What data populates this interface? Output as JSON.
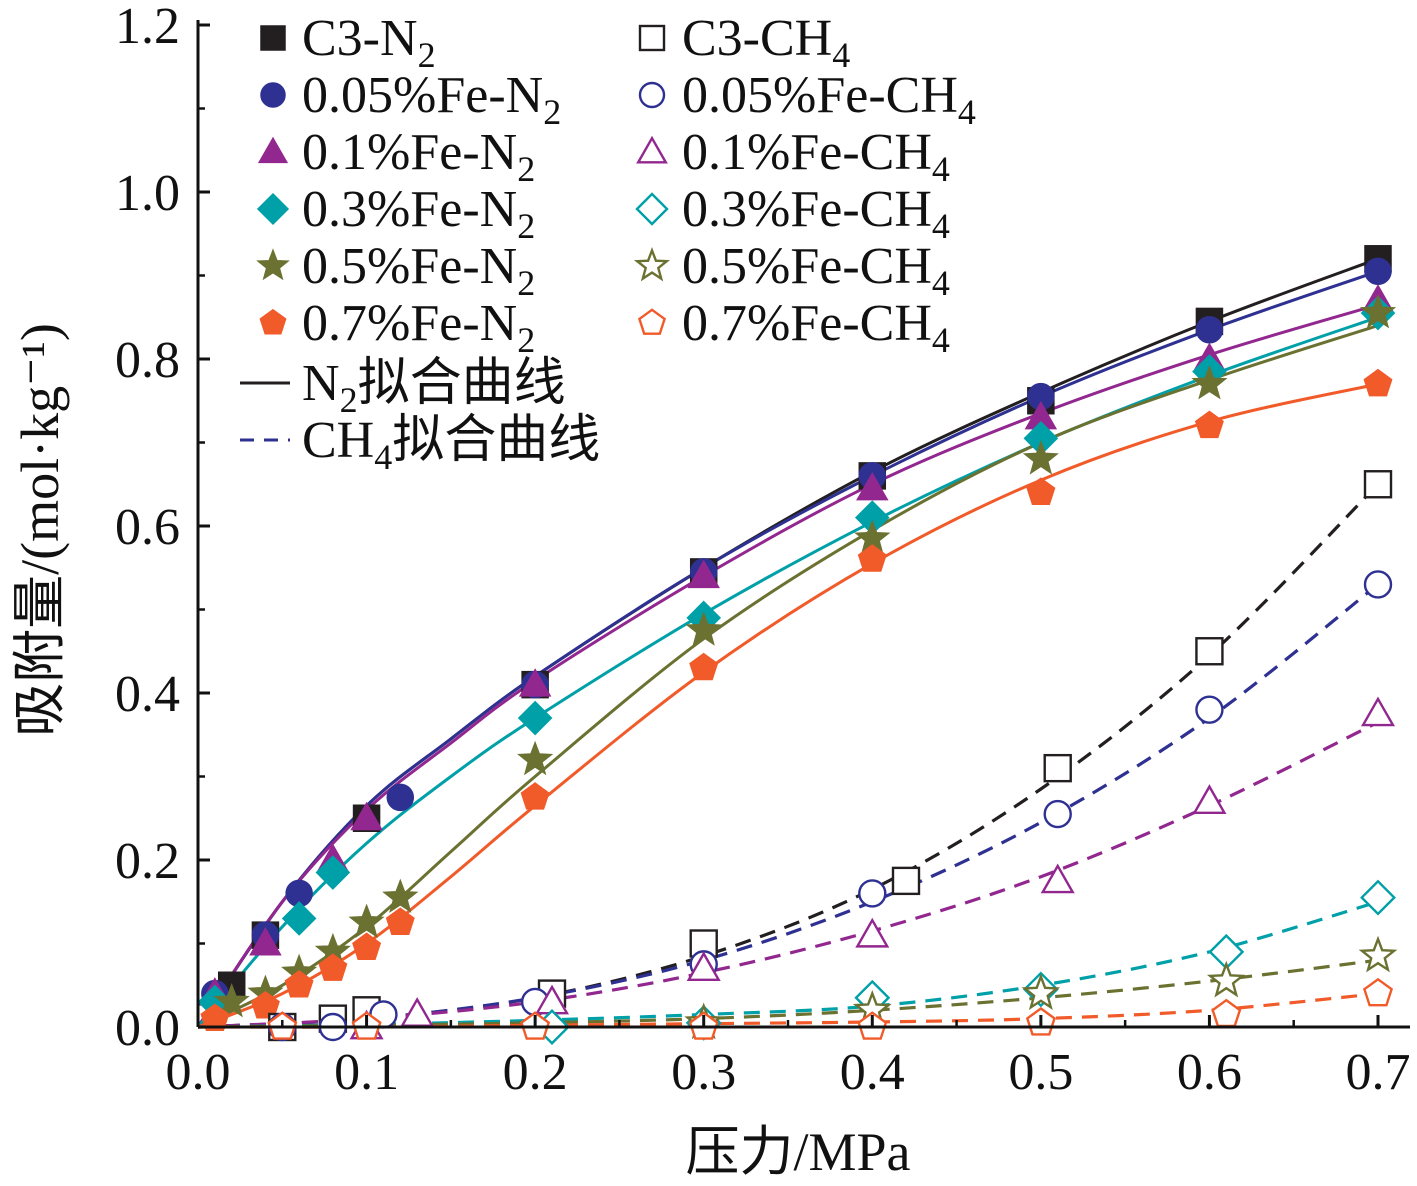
{
  "chart_data": {
    "type": "scatter",
    "title": "",
    "xlabel": "压力/MPa",
    "ylabel": "吸附量/(mol·kg⁻¹)",
    "xlim": [
      0.0,
      0.7
    ],
    "ylim": [
      0.0,
      1.2
    ],
    "x_ticks": [
      "0.0",
      "0.1",
      "0.2",
      "0.3",
      "0.4",
      "0.5",
      "0.6",
      "0.7"
    ],
    "y_ticks": [
      "0.0",
      "0.2",
      "0.4",
      "0.6",
      "0.8",
      "1.0",
      "1.2"
    ],
    "grid": false,
    "legend_position": "top-left",
    "series": [
      {
        "name": "C3-N2",
        "label_main": "C3-N",
        "label_sub": "2",
        "label_tail": "",
        "gas": "N2",
        "marker": "square",
        "filled": true,
        "color": "#231f20",
        "points": [
          [
            0.02,
            0.05
          ],
          [
            0.04,
            0.11
          ],
          [
            0.1,
            0.25
          ],
          [
            0.2,
            0.41
          ],
          [
            0.3,
            0.545
          ],
          [
            0.4,
            0.66
          ],
          [
            0.5,
            0.75
          ],
          [
            0.6,
            0.845
          ],
          [
            0.7,
            0.92
          ]
        ],
        "fit": [
          [
            0,
            0
          ],
          [
            0.05,
            0.15
          ],
          [
            0.1,
            0.265
          ],
          [
            0.15,
            0.345
          ],
          [
            0.2,
            0.42
          ],
          [
            0.3,
            0.55
          ],
          [
            0.4,
            0.665
          ],
          [
            0.5,
            0.76
          ],
          [
            0.6,
            0.845
          ],
          [
            0.7,
            0.92
          ]
        ]
      },
      {
        "name": "0.05%Fe-N2",
        "label_main": "0.05%Fe-N",
        "label_sub": "2",
        "label_tail": "",
        "gas": "N2",
        "marker": "circle",
        "filled": true,
        "color": "#2e3192",
        "points": [
          [
            0.01,
            0.04
          ],
          [
            0.04,
            0.11
          ],
          [
            0.06,
            0.16
          ],
          [
            0.12,
            0.275
          ],
          [
            0.2,
            0.41
          ],
          [
            0.3,
            0.545
          ],
          [
            0.4,
            0.66
          ],
          [
            0.5,
            0.755
          ],
          [
            0.6,
            0.835
          ],
          [
            0.7,
            0.905
          ]
        ],
        "fit": [
          [
            0,
            0
          ],
          [
            0.05,
            0.15
          ],
          [
            0.1,
            0.265
          ],
          [
            0.15,
            0.345
          ],
          [
            0.2,
            0.42
          ],
          [
            0.3,
            0.55
          ],
          [
            0.4,
            0.66
          ],
          [
            0.5,
            0.755
          ],
          [
            0.6,
            0.835
          ],
          [
            0.7,
            0.905
          ]
        ]
      },
      {
        "name": "0.1%Fe-N2",
        "label_main": "0.1%Fe-N",
        "label_sub": "2",
        "label_tail": "",
        "gas": "N2",
        "marker": "triangle",
        "filled": true,
        "color": "#92278f",
        "points": [
          [
            0.01,
            0.04
          ],
          [
            0.04,
            0.1
          ],
          [
            0.08,
            0.2
          ],
          [
            0.1,
            0.25
          ],
          [
            0.2,
            0.41
          ],
          [
            0.3,
            0.54
          ],
          [
            0.4,
            0.645
          ],
          [
            0.5,
            0.73
          ],
          [
            0.6,
            0.8
          ],
          [
            0.7,
            0.87
          ]
        ],
        "fit": [
          [
            0,
            0
          ],
          [
            0.05,
            0.15
          ],
          [
            0.1,
            0.26
          ],
          [
            0.15,
            0.34
          ],
          [
            0.2,
            0.415
          ],
          [
            0.3,
            0.54
          ],
          [
            0.4,
            0.65
          ],
          [
            0.5,
            0.735
          ],
          [
            0.6,
            0.805
          ],
          [
            0.7,
            0.865
          ]
        ]
      },
      {
        "name": "0.3%Fe-N2",
        "label_main": "0.3%Fe-N",
        "label_sub": "2",
        "label_tail": "",
        "gas": "N2",
        "marker": "diamond",
        "filled": true,
        "color": "#00a0a8",
        "points": [
          [
            0.01,
            0.03
          ],
          [
            0.06,
            0.13
          ],
          [
            0.08,
            0.185
          ],
          [
            0.2,
            0.37
          ],
          [
            0.3,
            0.49
          ],
          [
            0.4,
            0.61
          ],
          [
            0.5,
            0.705
          ],
          [
            0.6,
            0.785
          ],
          [
            0.7,
            0.855
          ]
        ],
        "fit": [
          [
            0,
            0
          ],
          [
            0.05,
            0.12
          ],
          [
            0.1,
            0.22
          ],
          [
            0.15,
            0.3
          ],
          [
            0.2,
            0.37
          ],
          [
            0.3,
            0.495
          ],
          [
            0.4,
            0.605
          ],
          [
            0.5,
            0.7
          ],
          [
            0.6,
            0.78
          ],
          [
            0.7,
            0.85
          ]
        ]
      },
      {
        "name": "0.5%Fe-N2",
        "label_main": "0.5%Fe-N",
        "label_sub": "2",
        "label_tail": "",
        "gas": "N2",
        "marker": "star",
        "filled": true,
        "color": "#6b7130",
        "points": [
          [
            0.02,
            0.03
          ],
          [
            0.04,
            0.04
          ],
          [
            0.06,
            0.065
          ],
          [
            0.08,
            0.09
          ],
          [
            0.1,
            0.125
          ],
          [
            0.12,
            0.155
          ],
          [
            0.2,
            0.32
          ],
          [
            0.3,
            0.475
          ],
          [
            0.4,
            0.585
          ],
          [
            0.5,
            0.68
          ],
          [
            0.6,
            0.77
          ],
          [
            0.7,
            0.855
          ]
        ],
        "fit": [
          [
            0,
            0
          ],
          [
            0.05,
            0.05
          ],
          [
            0.1,
            0.12
          ],
          [
            0.15,
            0.21
          ],
          [
            0.2,
            0.3
          ],
          [
            0.3,
            0.465
          ],
          [
            0.4,
            0.595
          ],
          [
            0.5,
            0.7
          ],
          [
            0.6,
            0.775
          ],
          [
            0.7,
            0.84
          ]
        ]
      },
      {
        "name": "0.7%Fe-N2",
        "label_main": "0.7%Fe-N",
        "label_sub": "2",
        "label_tail": "",
        "gas": "N2",
        "marker": "pentagon",
        "filled": true,
        "color": "#f15a29",
        "points": [
          [
            0.01,
            0.01
          ],
          [
            0.04,
            0.025
          ],
          [
            0.06,
            0.05
          ],
          [
            0.08,
            0.07
          ],
          [
            0.1,
            0.095
          ],
          [
            0.12,
            0.125
          ],
          [
            0.2,
            0.275
          ],
          [
            0.3,
            0.43
          ],
          [
            0.4,
            0.56
          ],
          [
            0.5,
            0.64
          ],
          [
            0.6,
            0.72
          ],
          [
            0.7,
            0.77
          ]
        ],
        "fit": [
          [
            0,
            0
          ],
          [
            0.05,
            0.04
          ],
          [
            0.1,
            0.1
          ],
          [
            0.15,
            0.18
          ],
          [
            0.2,
            0.265
          ],
          [
            0.3,
            0.425
          ],
          [
            0.4,
            0.555
          ],
          [
            0.5,
            0.655
          ],
          [
            0.6,
            0.725
          ],
          [
            0.7,
            0.77
          ]
        ]
      },
      {
        "name": "C3-CH4",
        "label_main": "C3-CH",
        "label_sub": "4",
        "label_tail": "",
        "gas": "CH4",
        "marker": "square",
        "filled": false,
        "color": "#231f20",
        "points": [
          [
            0.05,
            0.0
          ],
          [
            0.08,
            0.01
          ],
          [
            0.1,
            0.02
          ],
          [
            0.21,
            0.04
          ],
          [
            0.3,
            0.1
          ],
          [
            0.42,
            0.175
          ],
          [
            0.51,
            0.31
          ],
          [
            0.6,
            0.45
          ],
          [
            0.7,
            0.65
          ]
        ],
        "fit": [
          [
            0,
            0
          ],
          [
            0.1,
            0.01
          ],
          [
            0.2,
            0.035
          ],
          [
            0.3,
            0.085
          ],
          [
            0.4,
            0.165
          ],
          [
            0.5,
            0.285
          ],
          [
            0.6,
            0.445
          ],
          [
            0.7,
            0.65
          ]
        ]
      },
      {
        "name": "0.05%Fe-CH4",
        "label_main": "0.05%Fe-CH",
        "label_sub": "4",
        "label_tail": "",
        "gas": "CH4",
        "marker": "circle",
        "filled": false,
        "color": "#2e3192",
        "points": [
          [
            0.05,
            0.0
          ],
          [
            0.08,
            0.0
          ],
          [
            0.11,
            0.015
          ],
          [
            0.2,
            0.03
          ],
          [
            0.3,
            0.075
          ],
          [
            0.4,
            0.16
          ],
          [
            0.51,
            0.255
          ],
          [
            0.6,
            0.38
          ],
          [
            0.7,
            0.53
          ]
        ],
        "fit": [
          [
            0,
            0
          ],
          [
            0.1,
            0.01
          ],
          [
            0.2,
            0.035
          ],
          [
            0.3,
            0.08
          ],
          [
            0.4,
            0.15
          ],
          [
            0.5,
            0.245
          ],
          [
            0.6,
            0.37
          ],
          [
            0.7,
            0.53
          ]
        ]
      },
      {
        "name": "0.1%Fe-CH4",
        "label_main": "0.1%Fe-CH",
        "label_sub": "4",
        "label_tail": "",
        "gas": "CH4",
        "marker": "triangle",
        "filled": false,
        "color": "#92278f",
        "points": [
          [
            0.1,
            0.0
          ],
          [
            0.13,
            0.015
          ],
          [
            0.21,
            0.03
          ],
          [
            0.3,
            0.07
          ],
          [
            0.4,
            0.11
          ],
          [
            0.51,
            0.175
          ],
          [
            0.6,
            0.27
          ],
          [
            0.7,
            0.375
          ]
        ],
        "fit": [
          [
            0,
            0
          ],
          [
            0.1,
            0.01
          ],
          [
            0.2,
            0.03
          ],
          [
            0.3,
            0.065
          ],
          [
            0.4,
            0.115
          ],
          [
            0.5,
            0.18
          ],
          [
            0.6,
            0.265
          ],
          [
            0.7,
            0.365
          ]
        ]
      },
      {
        "name": "0.3%Fe-CH4",
        "label_main": "0.3%Fe-CH",
        "label_sub": "4",
        "label_tail": "",
        "gas": "CH4",
        "marker": "diamond",
        "filled": false,
        "color": "#00a0a8",
        "points": [
          [
            0.21,
            0.0
          ],
          [
            0.3,
            0.005
          ],
          [
            0.4,
            0.035
          ],
          [
            0.5,
            0.045
          ],
          [
            0.61,
            0.09
          ],
          [
            0.7,
            0.155
          ]
        ],
        "fit": [
          [
            0,
            0
          ],
          [
            0.1,
            0.003
          ],
          [
            0.2,
            0.008
          ],
          [
            0.3,
            0.015
          ],
          [
            0.4,
            0.025
          ],
          [
            0.5,
            0.05
          ],
          [
            0.6,
            0.09
          ],
          [
            0.7,
            0.15
          ]
        ]
      },
      {
        "name": "0.5%Fe-CH4",
        "label_main": "0.5%Fe-CH",
        "label_sub": "4",
        "label_tail": "",
        "gas": "CH4",
        "marker": "star",
        "filled": false,
        "color": "#6b7130",
        "points": [
          [
            0.3,
            0.005
          ],
          [
            0.4,
            0.02
          ],
          [
            0.5,
            0.04
          ],
          [
            0.61,
            0.055
          ],
          [
            0.7,
            0.085
          ]
        ],
        "fit": [
          [
            0,
            0
          ],
          [
            0.1,
            0.002
          ],
          [
            0.2,
            0.005
          ],
          [
            0.3,
            0.01
          ],
          [
            0.4,
            0.02
          ],
          [
            0.5,
            0.035
          ],
          [
            0.6,
            0.055
          ],
          [
            0.7,
            0.08
          ]
        ]
      },
      {
        "name": "0.7%Fe-CH4",
        "label_main": "0.7%Fe-CH",
        "label_sub": "4",
        "label_tail": "",
        "gas": "CH4",
        "marker": "pentagon",
        "filled": false,
        "color": "#f15a29",
        "points": [
          [
            0.05,
            0.0
          ],
          [
            0.1,
            0.0
          ],
          [
            0.2,
            0.0
          ],
          [
            0.3,
            0.0
          ],
          [
            0.4,
            0.0
          ],
          [
            0.5,
            0.005
          ],
          [
            0.61,
            0.015
          ],
          [
            0.7,
            0.04
          ]
        ],
        "fit": [
          [
            0,
            0
          ],
          [
            0.1,
            0.0
          ],
          [
            0.2,
            0.002
          ],
          [
            0.3,
            0.004
          ],
          [
            0.4,
            0.006
          ],
          [
            0.5,
            0.01
          ],
          [
            0.6,
            0.02
          ],
          [
            0.7,
            0.04
          ]
        ]
      }
    ],
    "fit_legend": [
      {
        "style": "solid",
        "label_pre": "N",
        "label_sub": "2",
        "label_tail": "拟合曲线",
        "color": "#231f20"
      },
      {
        "style": "dashed",
        "label_pre": "CH",
        "label_sub": "4",
        "label_tail": "拟合曲线",
        "color": "#2e3192"
      }
    ]
  }
}
